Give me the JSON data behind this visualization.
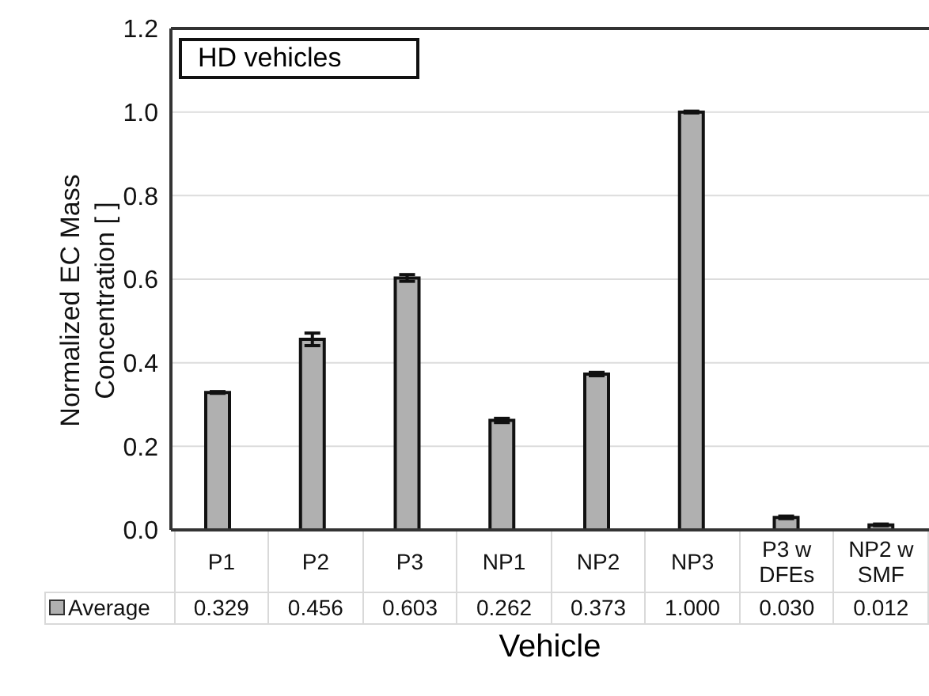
{
  "chart_data": {
    "type": "bar",
    "xlabel": "Vehicle",
    "ylabel": "Normalized EC Mass Concentration [ ]",
    "annotations": [
      "HD vehicles"
    ],
    "categories": [
      "P1",
      "P2",
      "P3",
      "NP1",
      "NP2",
      "NP3",
      "P3 w DFEs",
      "NP2 w SMF"
    ],
    "series": [
      {
        "name": "Average",
        "color": "#b0b0b0",
        "values": [
          0.329,
          0.456,
          0.603,
          0.262,
          0.373,
          1.0,
          0.03,
          0.012
        ],
        "errors": [
          0.002,
          0.015,
          0.008,
          0.005,
          0.004,
          0.002,
          0.003,
          0.002
        ],
        "value_labels": [
          "0.329",
          "0.456",
          "0.603",
          "0.262",
          "0.373",
          "1.000",
          "0.030",
          "0.012"
        ]
      }
    ],
    "ylim": [
      0,
      1.2
    ],
    "yticks": [
      {
        "value": 0,
        "label": "0.0"
      },
      {
        "value": 0.2,
        "label": "0.2"
      },
      {
        "value": 0.4,
        "label": "0.4"
      },
      {
        "value": 0.6,
        "label": "0.6"
      },
      {
        "value": 0.8,
        "label": "0.8"
      },
      {
        "value": 1.0,
        "label": "1.0"
      },
      {
        "value": 1.2,
        "label": "1.2"
      }
    ],
    "grid": "y",
    "legend": "bottom left"
  }
}
